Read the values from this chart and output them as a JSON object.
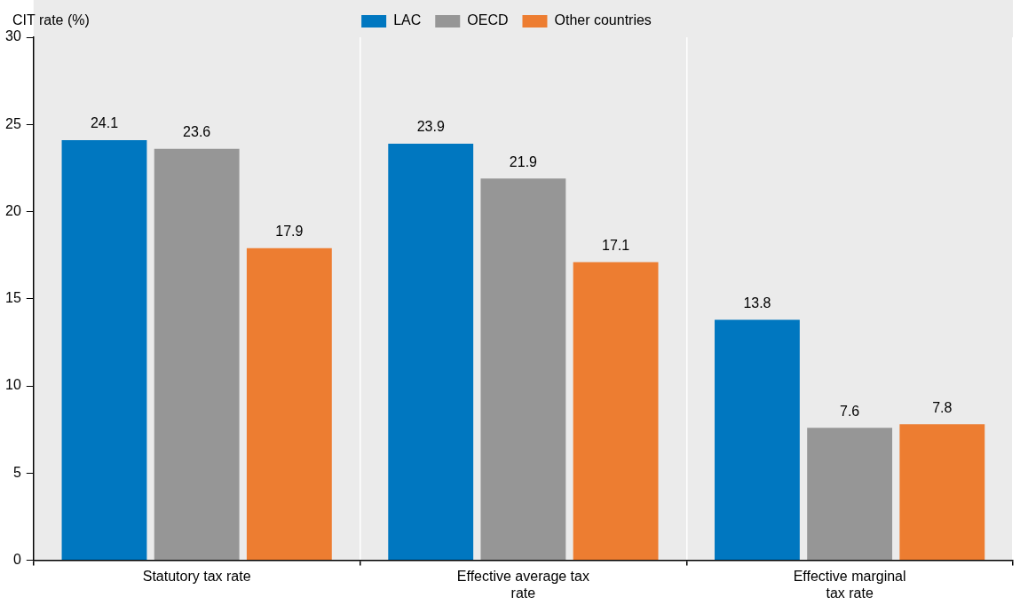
{
  "chart_data": {
    "type": "bar",
    "ylabel": "CIT rate (%)",
    "categories": [
      "Statutory tax rate",
      "Effective average tax rate",
      "Effective marginal tax rate"
    ],
    "series": [
      {
        "name": "LAC",
        "color": "#0077c0",
        "values": [
          24.1,
          23.9,
          13.8
        ]
      },
      {
        "name": "OECD",
        "color": "#969696",
        "values": [
          23.6,
          21.9,
          7.6
        ]
      },
      {
        "name": "Other countries",
        "color": "#ed7d31",
        "values": [
          17.9,
          17.1,
          7.8
        ]
      }
    ],
    "ylim": [
      0,
      30
    ],
    "yticks": [
      0,
      5,
      10,
      15,
      20,
      25,
      30
    ],
    "grid": "x",
    "legend": "top",
    "data_labels": true
  }
}
